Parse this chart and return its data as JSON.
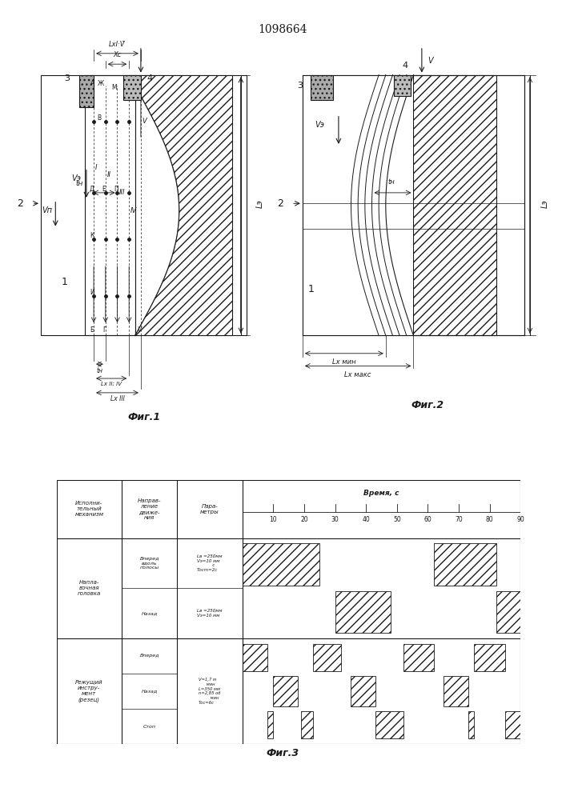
{
  "patent_number": "1098664",
  "line_color": "#1a1a1a",
  "fig1_label": "Фиг.1",
  "fig2_label": "Фиг.2",
  "fig3_label": "Фиг.3",
  "table_col1_header": "Исполни-\nтельный\nмеханизм",
  "table_col2_header": "Направ-\nление\nдвиже-\nния",
  "table_col3_header": "Пара-\nметры",
  "table_time_header": "Время, с",
  "table_times": [
    10,
    20,
    30,
    40,
    50,
    60,
    70,
    80,
    90
  ],
  "row1_col1": "Напла-\nвочная\nголовка",
  "row1_col2a": "Вперед\nвдоль\nполосы",
  "row1_col2b": "Назад",
  "row1_col3a": "Lв =250мм\nVэ=10 мм\n           с\nТосm=2с",
  "row1_col3b": "Lв =250мм\nVэ=10 мм",
  "row2_col1": "Режущий\nинстру-\nмент\n(резец)",
  "row2_col2a": "Вперед",
  "row2_col2b": "Назад",
  "row2_col2c": "Стоп",
  "row2_col3": "V=1,7 м\n      мин\nL=350 мм\nn=2,85 об\n         мин\nТос=6с"
}
